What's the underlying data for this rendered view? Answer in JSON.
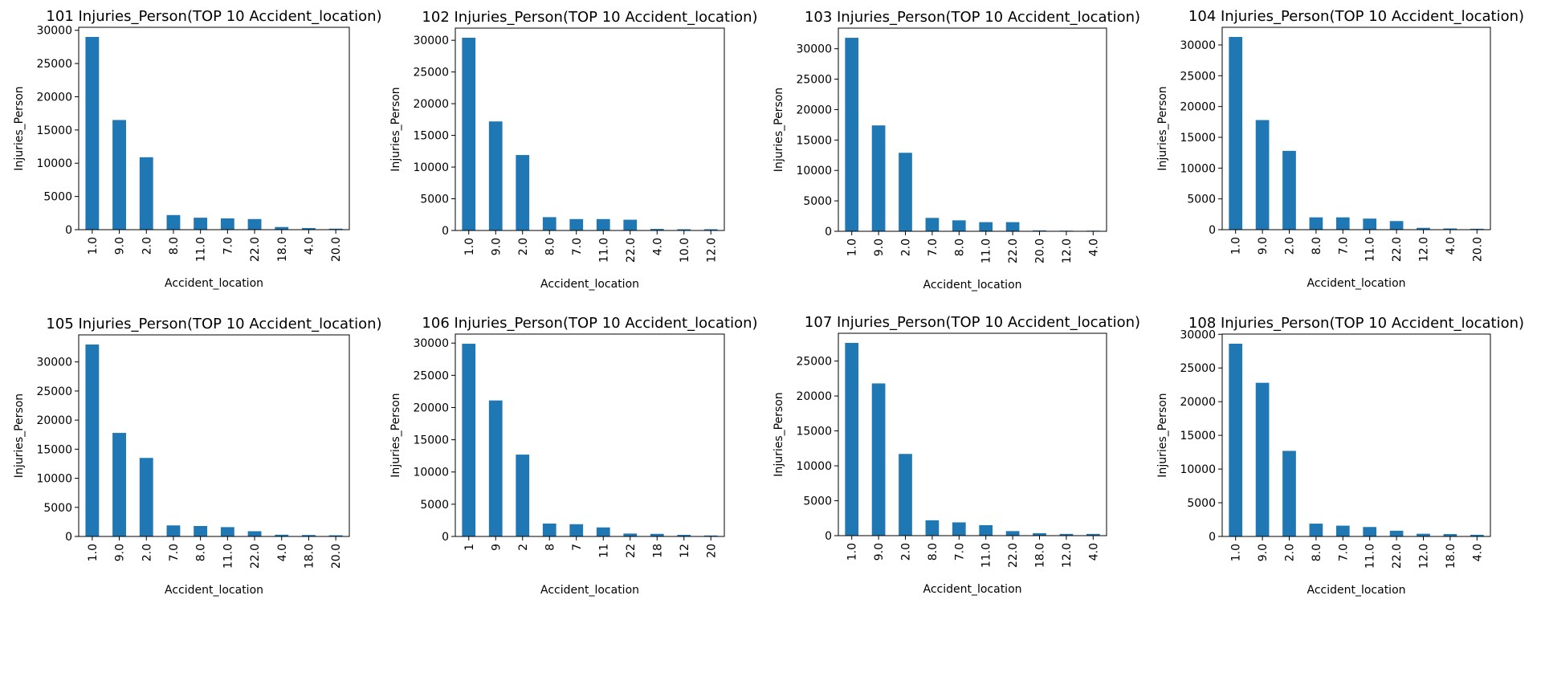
{
  "colors": {
    "bar": "#1f77b4",
    "axis": "#000000",
    "background": "#ffffff"
  },
  "chart_data": [
    {
      "type": "bar",
      "title": "101 Injuries_Person(TOP 10 Accident_location)",
      "xlabel": "Accident_location",
      "ylabel": "Injuries_Person",
      "categories": [
        "1.0",
        "9.0",
        "2.0",
        "8.0",
        "11.0",
        "7.0",
        "22.0",
        "18.0",
        "4.0",
        "20.0"
      ],
      "values": [
        29000,
        16500,
        10900,
        2200,
        1800,
        1700,
        1600,
        400,
        250,
        150
      ],
      "yticks": [
        0,
        5000,
        10000,
        15000,
        20000,
        25000,
        30000
      ],
      "ylim": [
        0,
        30450
      ],
      "grid": false,
      "legend": "none"
    },
    {
      "type": "bar",
      "title": "102 Injuries_Person(TOP 10 Accident_location)",
      "xlabel": "Accident_location",
      "ylabel": "Injuries_Person",
      "categories": [
        "1.0",
        "9.0",
        "2.0",
        "8.0",
        "7.0",
        "11.0",
        "22.0",
        "4.0",
        "10.0",
        "12.0"
      ],
      "values": [
        30400,
        17200,
        11900,
        2100,
        1800,
        1800,
        1700,
        250,
        200,
        200
      ],
      "yticks": [
        0,
        5000,
        10000,
        15000,
        20000,
        25000,
        30000
      ],
      "ylim": [
        0,
        31920
      ],
      "grid": false,
      "legend": "none"
    },
    {
      "type": "bar",
      "title": "103 Injuries_Person(TOP 10 Accident_location)",
      "xlabel": "Accident_location",
      "ylabel": "Injuries_Person",
      "categories": [
        "1.0",
        "9.0",
        "2.0",
        "7.0",
        "8.0",
        "11.0",
        "22.0",
        "20.0",
        "12.0",
        "4.0"
      ],
      "values": [
        31800,
        17400,
        12900,
        2200,
        1800,
        1500,
        1500,
        150,
        100,
        100
      ],
      "yticks": [
        0,
        5000,
        10000,
        15000,
        20000,
        25000,
        30000
      ],
      "ylim": [
        0,
        33390
      ],
      "grid": false,
      "legend": "none"
    },
    {
      "type": "bar",
      "title": "104 Injuries_Person(TOP 10 Accident_location)",
      "xlabel": "Accident_location",
      "ylabel": "Injuries_Person",
      "categories": [
        "1.0",
        "9.0",
        "2.0",
        "8.0",
        "7.0",
        "11.0",
        "22.0",
        "12.0",
        "4.0",
        "20.0"
      ],
      "values": [
        31300,
        17800,
        12800,
        2000,
        2000,
        1800,
        1400,
        300,
        200,
        150
      ],
      "yticks": [
        0,
        5000,
        10000,
        15000,
        20000,
        25000,
        30000
      ],
      "ylim": [
        0,
        32865
      ],
      "grid": false,
      "legend": "none"
    },
    {
      "type": "bar",
      "title": "105 Injuries_Person(TOP 10 Accident_location)",
      "xlabel": "Accident_location",
      "ylabel": "Injuries_Person",
      "categories": [
        "1.0",
        "9.0",
        "2.0",
        "7.0",
        "8.0",
        "11.0",
        "22.0",
        "4.0",
        "18.0",
        "20.0"
      ],
      "values": [
        33000,
        17800,
        13500,
        1900,
        1800,
        1600,
        900,
        300,
        250,
        200
      ],
      "yticks": [
        0,
        5000,
        10000,
        15000,
        20000,
        25000,
        30000
      ],
      "ylim": [
        0,
        34650
      ],
      "grid": false,
      "legend": "none"
    },
    {
      "type": "bar",
      "title": "106 Injuries_Person(TOP 10 Accident_location)",
      "xlabel": "Accident_location",
      "ylabel": "Injuries_Person",
      "categories": [
        "1",
        "9",
        "2",
        "8",
        "7",
        "11",
        "22",
        "18",
        "12",
        "20"
      ],
      "values": [
        29900,
        21100,
        12700,
        2000,
        1900,
        1400,
        450,
        400,
        250,
        150
      ],
      "yticks": [
        0,
        5000,
        10000,
        15000,
        20000,
        25000,
        30000
      ],
      "ylim": [
        0,
        31400
      ],
      "grid": false,
      "legend": "none"
    },
    {
      "type": "bar",
      "title": "107 Injuries_Person(TOP 10 Accident_location)",
      "xlabel": "Accident_location",
      "ylabel": "Injuries_Person",
      "categories": [
        "1.0",
        "9.0",
        "2.0",
        "8.0",
        "7.0",
        "11.0",
        "22.0",
        "18.0",
        "12.0",
        "4.0"
      ],
      "values": [
        27600,
        21800,
        11700,
        2200,
        1900,
        1500,
        650,
        350,
        250,
        250
      ],
      "yticks": [
        0,
        5000,
        10000,
        15000,
        20000,
        25000
      ],
      "ylim": [
        0,
        28980
      ],
      "grid": false,
      "legend": "none"
    },
    {
      "type": "bar",
      "title": "108 Injuries_Person(TOP 10 Accident_location)",
      "xlabel": "Accident_location",
      "ylabel": "Injuries_Person",
      "categories": [
        "1.0",
        "9.0",
        "2.0",
        "8.0",
        "7.0",
        "11.0",
        "22.0",
        "12.0",
        "18.0",
        "4.0"
      ],
      "values": [
        28600,
        22800,
        12700,
        1900,
        1600,
        1400,
        850,
        400,
        350,
        250
      ],
      "yticks": [
        0,
        5000,
        10000,
        15000,
        20000,
        25000,
        30000
      ],
      "ylim": [
        0,
        30030
      ],
      "grid": false,
      "legend": "none"
    }
  ]
}
